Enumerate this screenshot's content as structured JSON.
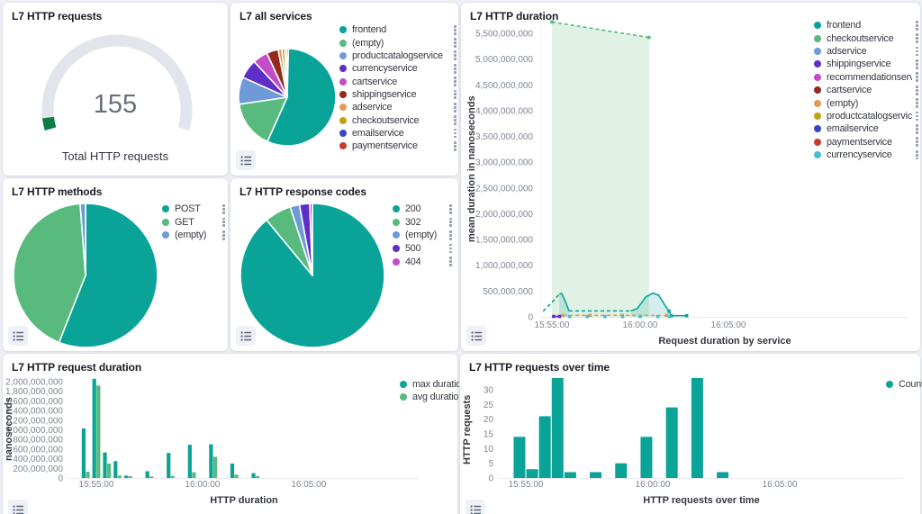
{
  "palette": {
    "teal": "#0aa398",
    "green": "#58ba7d",
    "band_fill": "#ddf1e4",
    "periwinkle": "#6e9bd8",
    "purple": "#5e2ec7",
    "magenta": "#c44cc5",
    "darkred": "#96291d",
    "orange": "#e29a5c",
    "gold": "#bfa30f",
    "blue": "#3845c5",
    "red": "#c63c33",
    "cyan": "#45bdd6",
    "gauge_green": "#0e7d45",
    "gauge_track": "#e2e5ec"
  },
  "panels": {
    "requests": {
      "title": "L7 HTTP requests"
    },
    "all_services": {
      "title": "L7 all services"
    },
    "duration": {
      "title": "L7 HTTP duration",
      "ylabel": "mean duration in nanoseconds",
      "xlabel": "Request duration by service"
    },
    "methods": {
      "title": "L7 HTTP methods"
    },
    "response_codes": {
      "title": "L7 HTTP response codes"
    },
    "request_duration": {
      "title": "L7 HTTP request duration",
      "ylabel": "nanoseconds",
      "xlabel": "HTTP duration"
    },
    "requests_over_time": {
      "title": "L7 HTTP requests over time",
      "ylabel": "HTTP requests",
      "xlabel": "HTTP requests over time"
    }
  },
  "chart_data": [
    {
      "id": "requests_gauge",
      "type": "gauge",
      "value": "155",
      "label": "Total HTTP requests",
      "track_color": "#e2e5ec",
      "fill_color": "#0e7d45",
      "fill_fraction": 0.045
    },
    {
      "id": "all_services_pie",
      "type": "pie",
      "slices": [
        {
          "label": "frontend",
          "pct": 56.7,
          "color": "#0aa398"
        },
        {
          "label": "(empty)",
          "pct": 16,
          "color": "#58ba7d"
        },
        {
          "label": "productcatalogservice",
          "pct": 9,
          "color": "#6e9bd8"
        },
        {
          "label": "currencyservice",
          "pct": 6.4,
          "color": "#5e2ec7"
        },
        {
          "label": "cartservice",
          "pct": 5,
          "color": "#c44cc5"
        },
        {
          "label": "shippingservice",
          "pct": 3.9,
          "color": "#96291d"
        },
        {
          "label": "adservice",
          "pct": 1.2,
          "color": "#e29a5c"
        },
        {
          "label": "checkoutservice",
          "pct": 1,
          "color": "#bfa30f"
        },
        {
          "label": "emailservice",
          "pct": 0.6,
          "color": "#3845c5"
        },
        {
          "label": "paymentservice",
          "pct": 0.6,
          "color": "#c63c33"
        }
      ]
    },
    {
      "id": "http_duration",
      "type": "line",
      "x_ticks": [
        {
          "t": 57300,
          "label": "15:55:00"
        },
        {
          "t": 57600,
          "label": "16:00:00"
        },
        {
          "t": 57900,
          "label": "16:05:00"
        }
      ],
      "y_ticks": [
        {
          "v": 0,
          "label": "0"
        },
        {
          "v": 500000000,
          "label": "500,000,000"
        },
        {
          "v": 1000000000,
          "label": "1,000,000,000"
        },
        {
          "v": 1500000000,
          "label": "1,500,000,000"
        },
        {
          "v": 2000000000,
          "label": "2,000,000,000"
        },
        {
          "v": 2500000000,
          "label": "2,500,000,000"
        },
        {
          "v": 3000000000,
          "label": "3,000,000,000"
        },
        {
          "v": 3500000000,
          "label": "3,500,000,000"
        },
        {
          "v": 4000000000,
          "label": "4,000,000,000"
        },
        {
          "v": 4500000000,
          "label": "4,500,000,000"
        },
        {
          "v": 5000000000,
          "label": "5,000,000,000"
        },
        {
          "v": 5500000000,
          "label": "5,500,000,000"
        }
      ],
      "series": [
        {
          "name": "checkoutservice",
          "part": "band",
          "color": "#58ba7d",
          "dash": true,
          "fill": "#ddf1e4",
          "fill_opacity": 0.95,
          "markers": true,
          "points": [
            [
              57300,
              5720000000
            ],
            [
              57630,
              5420000000
            ]
          ]
        },
        {
          "name": "frontend",
          "part": "lead-in",
          "color": "#0aa398",
          "dash": true,
          "points": [
            [
              57270,
              110000000
            ],
            [
              57295,
              250000000
            ],
            [
              57325,
              440000000
            ]
          ]
        },
        {
          "name": "frontend",
          "part": "peak-1",
          "color": "#0aa398",
          "fill": "#0aa398",
          "fill_opacity": 0.18,
          "points": [
            [
              57325,
              440000000
            ],
            [
              57333,
              455000000
            ],
            [
              57345,
              310000000
            ],
            [
              57358,
              115000000
            ]
          ]
        },
        {
          "name": "frontend",
          "part": "plateau",
          "color": "#0aa398",
          "dash": true,
          "points": [
            [
              57358,
              115000000
            ],
            [
              57568,
              115000000
            ]
          ]
        },
        {
          "name": "frontend",
          "part": "peak-2",
          "color": "#0aa398",
          "fill": "#0aa398",
          "fill_opacity": 0.18,
          "points": [
            [
              57568,
              115000000
            ],
            [
              57590,
              160000000
            ],
            [
              57620,
              390000000
            ],
            [
              57643,
              460000000
            ],
            [
              57663,
              420000000
            ],
            [
              57685,
              220000000
            ],
            [
              57698,
              110000000
            ]
          ]
        },
        {
          "name": "frontend",
          "part": "tail",
          "color": "#0aa398",
          "markers": true,
          "points": [
            [
              57698,
              110000000
            ],
            [
              57706,
              22000000
            ],
            [
              57758,
              22000000
            ]
          ]
        },
        {
          "name": "(empty)",
          "color": "#e29a5c",
          "dash": true,
          "markers": true,
          "points": [
            [
              57337,
              28000000
            ],
            [
              57430,
              30000000
            ],
            [
              57540,
              30000000
            ],
            [
              57690,
              28000000
            ]
          ]
        },
        {
          "name": "shippingservice",
          "color": "#5e2ec7",
          "markers": true,
          "points": [
            [
              57306,
              8000000
            ],
            [
              57326,
              8000000
            ]
          ]
        },
        {
          "name": "currencyservice",
          "color": "#45bdd6",
          "line": false,
          "markers": true,
          "points": [
            [
              57360,
              6000000
            ],
            [
              57420,
              6000000
            ],
            [
              57480,
              6000000
            ],
            [
              57540,
              6000000
            ],
            [
              57600,
              6000000
            ],
            [
              57660,
              6000000
            ],
            [
              57700,
              6000000
            ]
          ]
        }
      ],
      "legend": [
        {
          "label": "frontend",
          "color": "#0aa398"
        },
        {
          "label": "checkoutservice",
          "color": "#58ba7d"
        },
        {
          "label": "adservice",
          "color": "#6e9bd8"
        },
        {
          "label": "shippingservice",
          "color": "#5e2ec7"
        },
        {
          "label": "recommendationservice",
          "color": "#c44cc5"
        },
        {
          "label": "cartservice",
          "color": "#96291d"
        },
        {
          "label": "(empty)",
          "color": "#e29a5c"
        },
        {
          "label": "productcatalogservice",
          "color": "#bfa30f"
        },
        {
          "label": "emailservice",
          "color": "#3845c5"
        },
        {
          "label": "paymentservice",
          "color": "#c63c33"
        },
        {
          "label": "currencyservice",
          "color": "#45bdd6"
        }
      ]
    },
    {
      "id": "methods_pie",
      "type": "pie",
      "slices": [
        {
          "label": "POST",
          "pct": 56,
          "color": "#0aa398"
        },
        {
          "label": "GET",
          "pct": 42.8,
          "color": "#58ba7d"
        },
        {
          "label": "(empty)",
          "pct": 1.2,
          "color": "#6e9bd8"
        }
      ]
    },
    {
      "id": "response_codes_pie",
      "type": "pie",
      "slices": [
        {
          "label": "200",
          "pct": 89,
          "color": "#0aa398"
        },
        {
          "label": "302",
          "pct": 6,
          "color": "#58ba7d"
        },
        {
          "label": "(empty)",
          "pct": 2.1,
          "color": "#6e9bd8"
        },
        {
          "label": "500",
          "pct": 2.3,
          "color": "#5e2ec7"
        },
        {
          "label": "404",
          "pct": 0.6,
          "color": "#c44cc5"
        }
      ]
    },
    {
      "id": "request_duration",
      "type": "bar",
      "x_ticks": [
        {
          "t": 57300,
          "label": "15:55:00"
        },
        {
          "t": 57600,
          "label": "16:00:00"
        },
        {
          "t": 57900,
          "label": "16:05:00"
        }
      ],
      "y_ticks": [
        {
          "v": 0,
          "label": "0"
        },
        {
          "v": 200000000,
          "label": "200,000,000"
        },
        {
          "v": 400000000,
          "label": "400,000,000"
        },
        {
          "v": 600000000,
          "label": "600,000,000"
        },
        {
          "v": 800000000,
          "label": "800,000,000"
        },
        {
          "v": 1000000000,
          "label": "1,000,000,000"
        },
        {
          "v": 1200000000,
          "label": "1,200,000,000"
        },
        {
          "v": 1400000000,
          "label": "1,400,000,000"
        },
        {
          "v": 1600000000,
          "label": "1,600,000,000"
        },
        {
          "v": 1800000000,
          "label": "1,800,000,000"
        },
        {
          "v": 2000000000,
          "label": "2,000,000,000"
        }
      ],
      "categories": {
        "t": [
          57270,
          57300,
          57330,
          57360,
          57390,
          57450,
          57510,
          57570,
          57630,
          57690,
          57750
        ],
        "time": [
          "15:54:30",
          "15:55:00",
          "15:55:30",
          "15:56:00",
          "15:56:30",
          "15:57:30",
          "15:58:30",
          "15:59:30",
          "16:00:30",
          "16:01:30",
          "16:02:30"
        ]
      },
      "series": [
        {
          "name": "max duration",
          "color": "#0aa398",
          "values": [
            1030000000,
            2060000000,
            530000000,
            350000000,
            50000000,
            140000000,
            520000000,
            690000000,
            700000000,
            300000000,
            100000000
          ]
        },
        {
          "name": "avg duration",
          "color": "#58ba7d",
          "values": [
            130000000,
            1920000000,
            300000000,
            50000000,
            40000000,
            30000000,
            40000000,
            120000000,
            440000000,
            70000000,
            40000000
          ]
        }
      ],
      "legend": [
        {
          "label": "max duration",
          "color": "#0aa398"
        },
        {
          "label": "avg duration",
          "color": "#58ba7d"
        }
      ]
    },
    {
      "id": "requests_over_time",
      "type": "bar",
      "x_ticks": [
        {
          "t": 57300,
          "label": "15:55:00"
        },
        {
          "t": 57600,
          "label": "16:00:00"
        },
        {
          "t": 57900,
          "label": "16:05:00"
        }
      ],
      "y_ticks": [
        {
          "v": 0,
          "label": "0"
        },
        {
          "v": 5,
          "label": "5"
        },
        {
          "v": 10,
          "label": "10"
        },
        {
          "v": 15,
          "label": "15"
        },
        {
          "v": 20,
          "label": "20"
        },
        {
          "v": 25,
          "label": "25"
        },
        {
          "v": 30,
          "label": "30"
        }
      ],
      "categories": {
        "t": [
          57285,
          57315,
          57345,
          57375,
          57405,
          57465,
          57525,
          57585,
          57645,
          57705,
          57765
        ],
        "time": [
          "15:54:45",
          "15:55:15",
          "15:55:45",
          "15:56:15",
          "15:56:45",
          "15:57:45",
          "15:58:45",
          "15:59:45",
          "16:00:45",
          "16:01:45",
          "16:02:45"
        ]
      },
      "series": [
        {
          "name": "Count",
          "color": "#0aa398",
          "values": [
            14,
            3,
            21,
            34,
            2,
            2,
            5,
            14,
            24,
            34,
            2
          ]
        }
      ],
      "legend": [
        {
          "label": "Count",
          "color": "#0aa398"
        }
      ]
    }
  ]
}
